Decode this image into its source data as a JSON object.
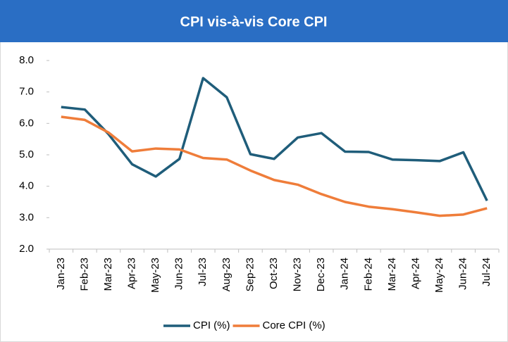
{
  "chart_data": {
    "type": "line",
    "title": "CPI vis-à-vis Core CPI",
    "categories": [
      "Jan-23",
      "Feb-23",
      "Mar-23",
      "Apr-23",
      "May-23",
      "Jun-23",
      "Jul-23",
      "Aug-23",
      "Sep-23",
      "Oct-23",
      "Nov-23",
      "Dec-23",
      "Jan-24",
      "Feb-24",
      "Mar-24",
      "Apr-24",
      "May-24",
      "Jun-24",
      "Jul-24"
    ],
    "series": [
      {
        "name": "CPI (%)",
        "color": "#1f5d7a",
        "values": [
          6.52,
          6.44,
          5.66,
          4.7,
          4.31,
          4.87,
          7.44,
          6.83,
          5.02,
          4.87,
          5.55,
          5.69,
          5.1,
          5.09,
          4.85,
          4.83,
          4.8,
          5.08,
          3.54
        ]
      },
      {
        "name": "Core CPI (%)",
        "color": "#ef7d3a",
        "values": [
          6.21,
          6.11,
          5.71,
          5.11,
          5.2,
          5.17,
          4.9,
          4.85,
          4.5,
          4.2,
          4.05,
          3.75,
          3.5,
          3.35,
          3.27,
          3.17,
          3.06,
          3.1,
          3.3
        ]
      }
    ],
    "ylim": [
      2,
      8
    ],
    "yticks": [
      {
        "value": 2,
        "label": "2.0"
      },
      {
        "value": 3,
        "label": "3.0"
      },
      {
        "value": 4,
        "label": "4.0"
      },
      {
        "value": 5,
        "label": "5.0"
      },
      {
        "value": 6,
        "label": "6.0"
      },
      {
        "value": 7,
        "label": "7.0"
      },
      {
        "value": 8,
        "label": "8.0"
      }
    ],
    "grid": false,
    "legend": "bottom"
  }
}
